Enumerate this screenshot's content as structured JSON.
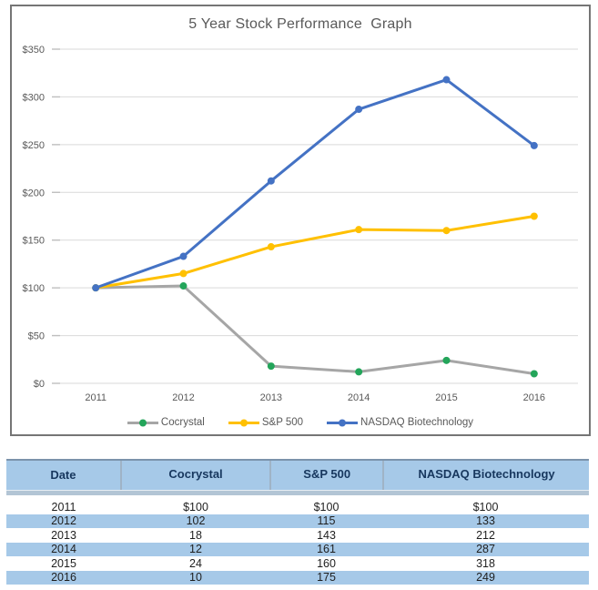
{
  "chart_data": {
    "type": "line",
    "title": "5 Year Stock Performance  Graph",
    "categories": [
      "2011",
      "2012",
      "2013",
      "2014",
      "2015",
      "2016"
    ],
    "series": [
      {
        "name": "Cocrystal",
        "line_color": "#a6a6a6",
        "marker_color": "#23a55a",
        "values": [
          100,
          102,
          18,
          12,
          24,
          10
        ]
      },
      {
        "name": "S&P 500",
        "line_color": "#ffc000",
        "marker_color": "#ffc000",
        "values": [
          100,
          115,
          143,
          161,
          160,
          175
        ]
      },
      {
        "name": "NASDAQ Biotechnology",
        "line_color": "#4472c4",
        "marker_color": "#4472c4",
        "values": [
          100,
          133,
          212,
          287,
          318,
          249
        ]
      }
    ],
    "ylim": [
      0,
      350
    ],
    "y_tick_step": 50,
    "y_tick_prefix": "$",
    "grid": true,
    "legend_position": "bottom",
    "colors": {
      "axis_text": "#595959",
      "gridline": "#d9d9d9",
      "tick_stub": "#bfbfbf"
    }
  },
  "table": {
    "headers": [
      "Date",
      "Cocrystal",
      "S&P 500",
      "NASDAQ Biotechnology"
    ],
    "rows": [
      [
        "2011",
        "$100",
        "$100",
        "$100"
      ],
      [
        "2012",
        "102",
        "115",
        "133"
      ],
      [
        "2013",
        "18",
        "143",
        "212"
      ],
      [
        "2014",
        "12",
        "161",
        "287"
      ],
      [
        "2015",
        "24",
        "160",
        "318"
      ],
      [
        "2016",
        "10",
        "175",
        "249"
      ]
    ],
    "band_color": "#a6c9e8",
    "header_text_color": "#17375e"
  }
}
